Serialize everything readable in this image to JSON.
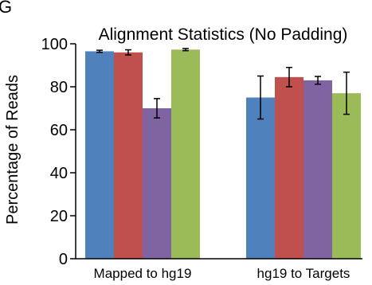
{
  "panel_label": "G",
  "chart_data": {
    "type": "bar",
    "title": "Alignment Statistics (No Padding)",
    "xlabel": "",
    "ylabel": "Percentage of Reads",
    "ylim": [
      0,
      100
    ],
    "yticks": [
      0,
      20,
      40,
      60,
      80,
      100
    ],
    "grid": false,
    "legend": "none",
    "categories": [
      "Mapped to hg19",
      "hg19 to Targets"
    ],
    "series": [
      {
        "color": "#4f81bd",
        "values": [
          96.5,
          75.0
        ],
        "errors": [
          0.5,
          10.0
        ]
      },
      {
        "color": "#c0504d",
        "values": [
          96.0,
          84.5
        ],
        "errors": [
          1.2,
          4.5
        ]
      },
      {
        "color": "#8064a2",
        "values": [
          70.0,
          83.0
        ],
        "errors": [
          4.5,
          1.8
        ]
      },
      {
        "color": "#9bbb59",
        "values": [
          97.3,
          77.0
        ],
        "errors": [
          0.5,
          9.8
        ]
      }
    ]
  }
}
